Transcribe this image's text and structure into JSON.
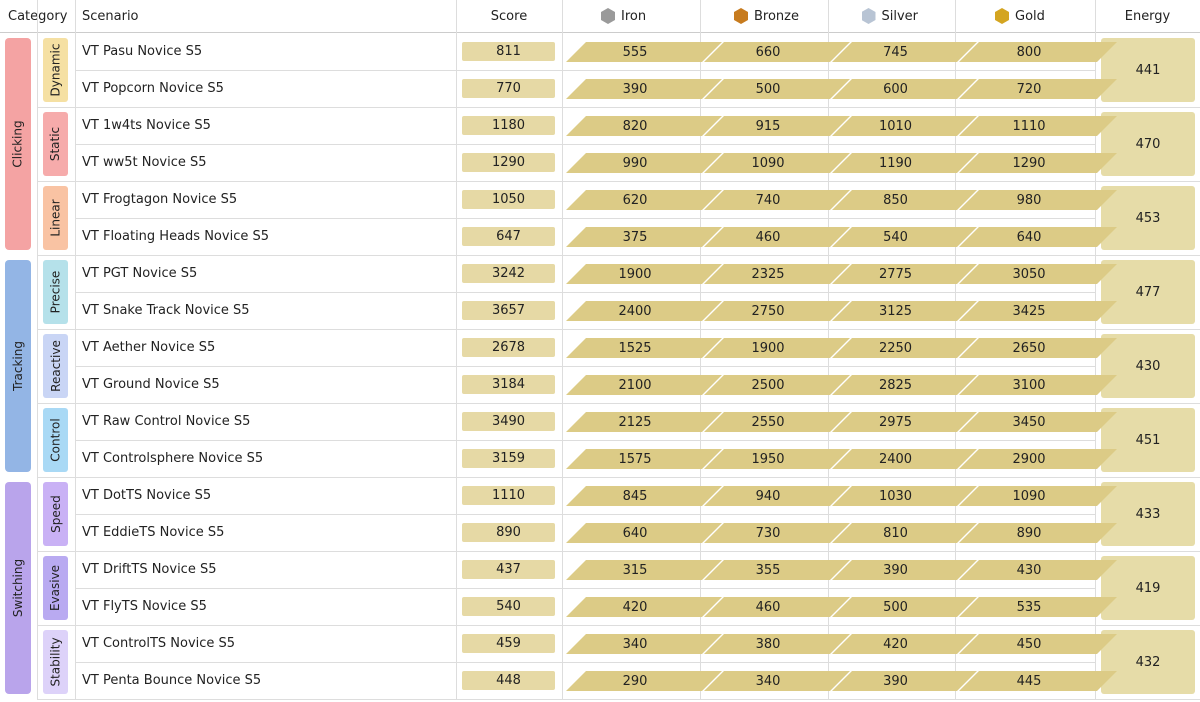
{
  "header": {
    "category": "Category",
    "scenario": "Scenario",
    "score": "Score",
    "ranks": [
      "Iron",
      "Bronze",
      "Silver",
      "Gold"
    ],
    "energy": "Energy"
  },
  "categories": [
    {
      "name": "Clicking",
      "color": "#f4a3a3",
      "groups": [
        {
          "name": "Dynamic",
          "color": "#f5e0a3",
          "energy": 441,
          "scenarios": [
            {
              "name": "VT Pasu Novice S5",
              "score": 811,
              "thresholds": [
                555,
                660,
                745,
                800
              ]
            },
            {
              "name": "VT Popcorn Novice S5",
              "score": 770,
              "thresholds": [
                390,
                500,
                600,
                720
              ]
            }
          ]
        },
        {
          "name": "Static",
          "color": "#f6abab",
          "energy": 470,
          "scenarios": [
            {
              "name": "VT 1w4ts Novice S5",
              "score": 1180,
              "thresholds": [
                820,
                915,
                1010,
                1110
              ]
            },
            {
              "name": "VT ww5t Novice S5",
              "score": 1290,
              "thresholds": [
                990,
                1090,
                1190,
                1290
              ]
            }
          ]
        },
        {
          "name": "Linear",
          "color": "#f9c3a3",
          "energy": 453,
          "scenarios": [
            {
              "name": "VT Frogtagon Novice S5",
              "score": 1050,
              "thresholds": [
                620,
                740,
                850,
                980
              ]
            },
            {
              "name": "VT Floating Heads Novice S5",
              "score": 647,
              "thresholds": [
                375,
                460,
                540,
                640
              ]
            }
          ]
        }
      ]
    },
    {
      "name": "Tracking",
      "color": "#93b5e5",
      "groups": [
        {
          "name": "Precise",
          "color": "#b5e1ea",
          "energy": 477,
          "scenarios": [
            {
              "name": "VT PGT Novice S5",
              "score": 3242,
              "thresholds": [
                1900,
                2325,
                2775,
                3050
              ]
            },
            {
              "name": "VT Snake Track Novice S5",
              "score": 3657,
              "thresholds": [
                2400,
                2750,
                3125,
                3425
              ]
            }
          ]
        },
        {
          "name": "Reactive",
          "color": "#c9d5f5",
          "energy": 430,
          "scenarios": [
            {
              "name": "VT Aether Novice S5",
              "score": 2678,
              "thresholds": [
                1525,
                1900,
                2250,
                2650
              ]
            },
            {
              "name": "VT Ground Novice S5",
              "score": 3184,
              "thresholds": [
                2100,
                2500,
                2825,
                3100
              ]
            }
          ]
        },
        {
          "name": "Control",
          "color": "#a9d9f5",
          "energy": 451,
          "scenarios": [
            {
              "name": "VT Raw Control Novice S5",
              "score": 3490,
              "thresholds": [
                2125,
                2550,
                2975,
                3450
              ]
            },
            {
              "name": "VT Controlsphere Novice S5",
              "score": 3159,
              "thresholds": [
                1575,
                1950,
                2400,
                2900
              ]
            }
          ]
        }
      ]
    },
    {
      "name": "Switching",
      "color": "#b9a4eb",
      "groups": [
        {
          "name": "Speed",
          "color": "#c9b1f5",
          "energy": 433,
          "scenarios": [
            {
              "name": "VT DotTS Novice S5",
              "score": 1110,
              "thresholds": [
                845,
                940,
                1030,
                1090
              ]
            },
            {
              "name": "VT EddieTS Novice S5",
              "score": 890,
              "thresholds": [
                640,
                730,
                810,
                890
              ]
            }
          ]
        },
        {
          "name": "Evasive",
          "color": "#b9aaf1",
          "energy": 419,
          "scenarios": [
            {
              "name": "VT DriftTS Novice S5",
              "score": 437,
              "thresholds": [
                315,
                355,
                390,
                430
              ]
            },
            {
              "name": "VT FlyTS Novice S5",
              "score": 540,
              "thresholds": [
                420,
                460,
                500,
                535
              ]
            }
          ]
        },
        {
          "name": "Stability",
          "color": "#ddd2f9",
          "energy": 432,
          "scenarios": [
            {
              "name": "VT ControlTS Novice S5",
              "score": 459,
              "thresholds": [
                340,
                380,
                420,
                450
              ]
            },
            {
              "name": "VT Penta Bounce Novice S5",
              "score": 448,
              "thresholds": [
                290,
                340,
                390,
                445
              ]
            }
          ]
        }
      ]
    }
  ]
}
